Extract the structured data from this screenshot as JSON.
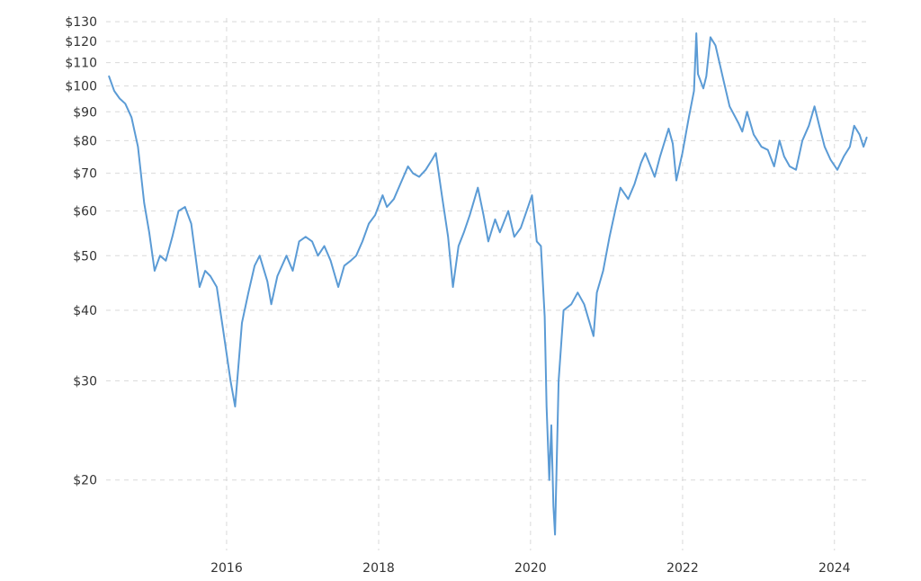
{
  "chart_data": {
    "type": "line",
    "title": "",
    "xlabel": "",
    "ylabel": "",
    "y_scale": "log",
    "ylim": [
      15,
      132
    ],
    "xlim": [
      "2014-06-01",
      "2024-06-10"
    ],
    "grid": true,
    "legend": "none",
    "line_color": "#5b9bd5",
    "grid_color": "#d9d9d9",
    "y_ticks": [
      {
        "value": 130,
        "label": "$130"
      },
      {
        "value": 120,
        "label": "$120"
      },
      {
        "value": 110,
        "label": "$110"
      },
      {
        "value": 100,
        "label": "$100"
      },
      {
        "value": 90,
        "label": "$90"
      },
      {
        "value": 80,
        "label": "$80"
      },
      {
        "value": 70,
        "label": "$70"
      },
      {
        "value": 60,
        "label": "$60"
      },
      {
        "value": 50,
        "label": "$50"
      },
      {
        "value": 40,
        "label": "$40"
      },
      {
        "value": 30,
        "label": "$30"
      },
      {
        "value": 20,
        "label": "$20"
      }
    ],
    "x_ticks": [
      {
        "date": "2016-01-01",
        "label": "2016"
      },
      {
        "date": "2018-01-01",
        "label": "2018"
      },
      {
        "date": "2020-01-01",
        "label": "2020"
      },
      {
        "date": "2022-01-01",
        "label": "2022"
      },
      {
        "date": "2024-01-01",
        "label": "2024"
      }
    ],
    "series": [
      {
        "x": [
          "2014-06-15",
          "2014-07-10",
          "2014-08-05",
          "2014-09-01",
          "2014-10-01",
          "2014-11-01",
          "2014-12-01",
          "2014-12-25",
          "2015-01-20",
          "2015-02-15",
          "2015-03-15",
          "2015-04-15",
          "2015-05-15",
          "2015-06-15",
          "2015-07-15",
          "2015-08-24",
          "2015-09-20",
          "2015-10-15",
          "2015-11-15",
          "2015-12-15",
          "2016-01-20",
          "2016-02-11",
          "2016-03-15",
          "2016-04-15",
          "2016-05-15",
          "2016-06-08",
          "2016-07-15",
          "2016-08-03",
          "2016-09-01",
          "2016-10-15",
          "2016-11-14",
          "2016-12-15",
          "2017-01-15",
          "2017-02-15",
          "2017-03-15",
          "2017-04-15",
          "2017-05-15",
          "2017-06-21",
          "2017-07-20",
          "2017-08-20",
          "2017-09-15",
          "2017-10-15",
          "2017-11-15",
          "2017-12-15",
          "2018-01-20",
          "2018-02-10",
          "2018-03-15",
          "2018-04-15",
          "2018-05-22",
          "2018-06-15",
          "2018-07-15",
          "2018-08-15",
          "2018-09-15",
          "2018-10-03",
          "2018-11-01",
          "2018-12-01",
          "2018-12-24",
          "2019-01-20",
          "2019-02-15",
          "2019-03-15",
          "2019-04-23",
          "2019-05-20",
          "2019-06-12",
          "2019-07-15",
          "2019-08-07",
          "2019-09-16",
          "2019-10-15",
          "2019-11-15",
          "2019-12-20",
          "2020-01-08",
          "2020-01-31",
          "2020-02-20",
          "2020-03-09",
          "2020-03-18",
          "2020-03-31",
          "2020-04-10",
          "2020-04-20",
          "2020-04-28",
          "2020-05-15",
          "2020-06-08",
          "2020-07-15",
          "2020-08-15",
          "2020-09-15",
          "2020-10-30",
          "2020-11-15",
          "2020-12-15",
          "2021-01-15",
          "2021-02-15",
          "2021-03-08",
          "2021-04-15",
          "2021-05-15",
          "2021-06-15",
          "2021-07-06",
          "2021-08-20",
          "2021-09-15",
          "2021-10-26",
          "2021-11-15",
          "2021-12-02",
          "2021-12-31",
          "2022-01-31",
          "2022-02-25",
          "2022-03-08",
          "2022-03-16",
          "2022-04-11",
          "2022-04-25",
          "2022-05-15",
          "2022-06-08",
          "2022-07-15",
          "2022-08-15",
          "2022-09-26",
          "2022-10-15",
          "2022-11-07",
          "2022-12-09",
          "2023-01-15",
          "2023-02-15",
          "2023-03-17",
          "2023-04-12",
          "2023-05-04",
          "2023-05-31",
          "2023-06-30",
          "2023-07-31",
          "2023-08-31",
          "2023-09-27",
          "2023-10-20",
          "2023-11-15",
          "2023-12-13",
          "2024-01-15",
          "2024-02-15",
          "2024-03-15",
          "2024-04-05",
          "2024-05-01",
          "2024-05-20",
          "2024-06-04"
        ],
        "values": [
          104,
          98,
          95,
          93,
          88,
          78,
          62,
          55,
          47,
          50,
          49,
          54,
          60,
          61,
          57,
          44,
          47,
          46,
          44,
          37,
          30,
          27,
          38,
          43,
          48,
          50,
          45,
          41,
          46,
          50,
          47,
          53,
          54,
          53,
          50,
          52,
          49,
          44,
          48,
          49,
          50,
          53,
          57,
          59,
          64,
          61,
          63,
          67,
          72,
          70,
          69,
          71,
          74,
          76,
          64,
          54,
          44,
          52,
          55,
          59,
          66,
          59,
          53,
          58,
          55,
          60,
          54,
          56,
          61,
          64,
          53,
          52,
          39,
          27,
          20,
          25,
          18,
          16,
          30,
          40,
          41,
          43,
          41,
          36,
          43,
          47,
          54,
          61,
          66,
          63,
          67,
          73,
          76,
          69,
          75,
          84,
          79,
          68,
          76,
          88,
          98,
          124,
          105,
          99,
          104,
          122,
          118,
          103,
          92,
          86,
          83,
          90,
          82,
          78,
          77,
          72,
          80,
          75,
          72,
          71,
          80,
          85,
          92,
          85,
          78,
          74,
          71,
          75,
          78,
          85,
          82,
          78,
          81
        ]
      }
    ]
  }
}
